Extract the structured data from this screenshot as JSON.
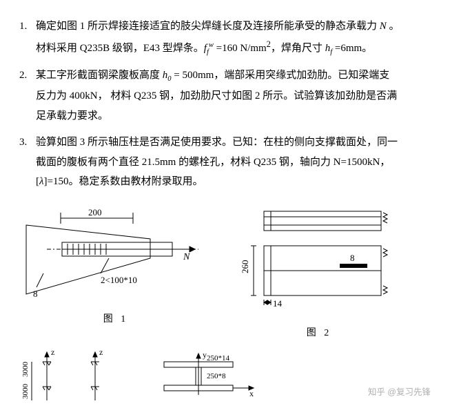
{
  "problems": [
    {
      "num": "1.",
      "lines": [
        "确定如图 1 所示焊接连接适宜的肢尖焊缝长度及连接所能承受的静态承载力 <span class=\"math\">N</span> 。",
        "材料采用 Q235B 级钢，E43 型焊条。<span class=\"math\">f<sub>f</sub><sup>w</sup></span> =160 N/mm<sup>2</sup>，焊角尺寸 <span class=\"math\">h<sub>f</sub></span> =6mm。"
      ]
    },
    {
      "num": "2.",
      "lines": [
        "某工字形截面钢梁腹板高度 <span class=\"math\">h<sub>0</sub></span> = 500mm，端部采用突缘式加劲肋。已知梁端支",
        "反力为 400kN， 材料 Q235 钢，加劲肋尺寸如图 2 所示。试验算该加劲肋是否满",
        "足承载力要求。"
      ]
    },
    {
      "num": "3.",
      "lines": [
        "验算如图 3 所示轴压柱是否满足使用要求。已知：在柱的侧向支撑截面处，同一",
        "截面的腹板有两个直径 21.5mm 的螺栓孔，材料 Q235 钢，轴向力 N=1500kN，",
        "[<span class=\"math\">λ</span>]=150。稳定系数由教材附录取用。"
      ]
    }
  ],
  "fig1": {
    "label": "图 1",
    "dim_top": "200",
    "size_text": "2<100*10",
    "size_left": "8",
    "arrow_text": "N"
  },
  "fig2": {
    "label": "图 2",
    "h_text": "260",
    "t_text": "8",
    "b_text": "14"
  },
  "fig3": {
    "z": "z",
    "y": "y",
    "x": "x",
    "h1": "3000",
    "h2": "3000",
    "flange": "250*14",
    "web": "250*8"
  },
  "watermark": "知乎 @复习先锋",
  "colors": {
    "stroke": "#000000",
    "fill": "#ffffff",
    "hatch": "#000000"
  }
}
